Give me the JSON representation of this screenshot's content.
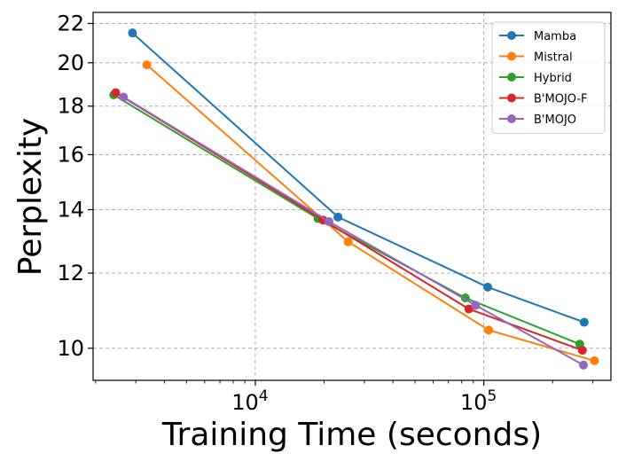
{
  "chart_data": {
    "type": "line",
    "xscale": "log",
    "yscale": "log",
    "xlabel": "Training Time (seconds)",
    "ylabel": "Perplexity",
    "xlim": [
      1950,
      360000
    ],
    "ylim": [
      9.25,
      22.6
    ],
    "grid": true,
    "legend_position": "top-right",
    "x_ticks": [
      {
        "value": 10000,
        "base": "10",
        "exp": "4"
      },
      {
        "value": 100000,
        "base": "10",
        "exp": "5"
      }
    ],
    "y_ticks": [
      {
        "value": 10,
        "label": "10"
      },
      {
        "value": 12,
        "label": "12"
      },
      {
        "value": 14,
        "label": "14"
      },
      {
        "value": 16,
        "label": "16"
      },
      {
        "value": 18,
        "label": "18"
      },
      {
        "value": 20,
        "label": "20"
      },
      {
        "value": 22,
        "label": "22"
      }
    ],
    "series": [
      {
        "name": "Mamba",
        "color": "#1f77b4",
        "x": [
          2900,
          23000,
          104000,
          275000
        ],
        "y": [
          21.5,
          13.75,
          11.6,
          10.65
        ]
      },
      {
        "name": "Mistral",
        "color": "#ff7f0e",
        "x": [
          3350,
          25500,
          105000,
          305000
        ],
        "y": [
          19.9,
          12.95,
          10.45,
          9.7
        ]
      },
      {
        "name": "Hybrid",
        "color": "#2ca02c",
        "x": [
          2400,
          18800,
          83000,
          263000
        ],
        "y": [
          18.5,
          13.7,
          11.3,
          10.1
        ]
      },
      {
        "name": "B'MOJO-F",
        "color": "#d62728",
        "x": [
          2450,
          19800,
          86000,
          270000
        ],
        "y": [
          18.6,
          13.65,
          11.0,
          9.95
        ]
      },
      {
        "name": "B'MOJO",
        "color": "#9467bd",
        "x": [
          2650,
          21000,
          92000,
          273000
        ],
        "y": [
          18.4,
          13.6,
          11.1,
          9.6
        ]
      }
    ]
  }
}
